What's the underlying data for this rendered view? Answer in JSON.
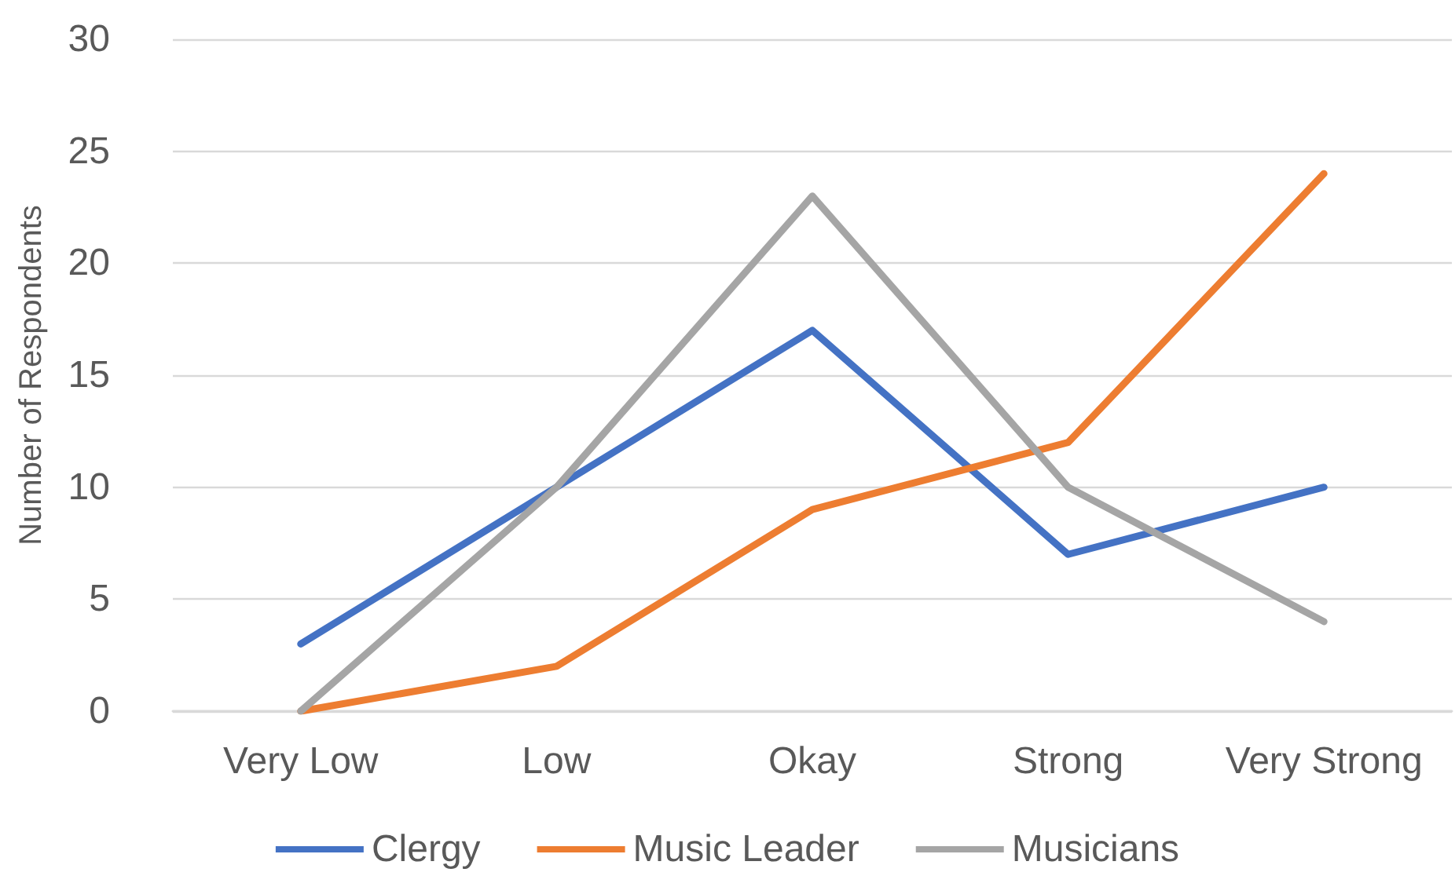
{
  "chart_data": {
    "type": "line",
    "ylabel": "Number of Respondents",
    "categories": [
      "Very Low",
      "Low",
      "Okay",
      "Strong",
      "Very Strong"
    ],
    "series": [
      {
        "name": "Clergy",
        "color": "#4472c4",
        "values": [
          3,
          10,
          17,
          7,
          10
        ]
      },
      {
        "name": "Music Leader",
        "color": "#ed7d31",
        "values": [
          0,
          2,
          9,
          12,
          24
        ]
      },
      {
        "name": "Musicians",
        "color": "#a5a5a5",
        "values": [
          0,
          10,
          23,
          10,
          4
        ]
      }
    ],
    "ylim": [
      0,
      30
    ],
    "yticks": [
      0,
      5,
      10,
      15,
      20,
      25,
      30
    ],
    "grid": "y",
    "legend": "bottom",
    "marker": "none",
    "line_style": "solid"
  }
}
